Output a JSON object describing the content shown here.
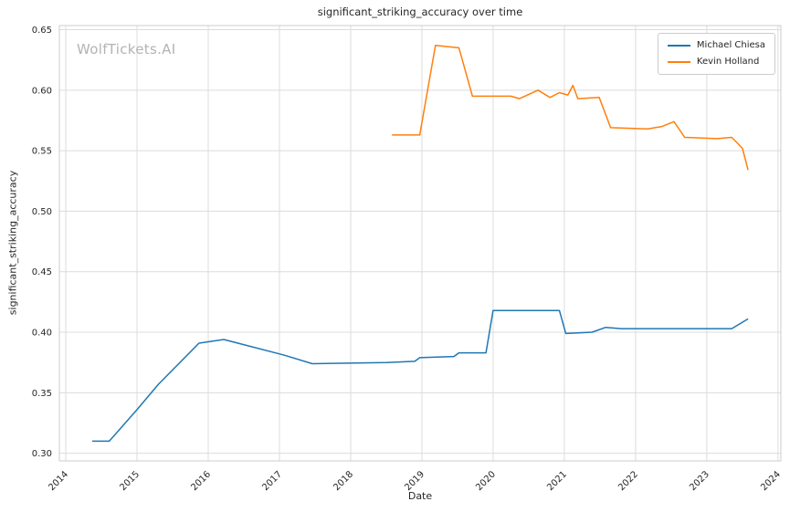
{
  "watermark": "WolfTickets.AI",
  "colors": {
    "grid": "#dcdcdc",
    "axes_border": "#cccccc",
    "text": "#262626",
    "watermark": "#b3b3b3"
  },
  "chart_data": {
    "type": "line",
    "title": "significant_striking_accuracy over time",
    "xlabel": "Date",
    "ylabel": "significant_striking_accuracy",
    "xlim": [
      2013.91,
      2024.04
    ],
    "ylim": [
      0.2937,
      0.6534
    ],
    "x_ticks": [
      2014,
      2015,
      2016,
      2017,
      2018,
      2019,
      2020,
      2021,
      2022,
      2023,
      2024
    ],
    "y_ticks": [
      0.3,
      0.35,
      0.4,
      0.45,
      0.5,
      0.55,
      0.6,
      0.65
    ],
    "grid": true,
    "legend_position": "upper right",
    "series": [
      {
        "name": "Michael Chiesa",
        "color": "#1f77b4",
        "points": [
          [
            2014.37,
            0.31
          ],
          [
            2014.61,
            0.31
          ],
          [
            2015.0,
            0.336
          ],
          [
            2015.3,
            0.357
          ],
          [
            2015.87,
            0.391
          ],
          [
            2016.22,
            0.394
          ],
          [
            2017.07,
            0.381
          ],
          [
            2017.46,
            0.374
          ],
          [
            2018.5,
            0.375
          ],
          [
            2018.9,
            0.376
          ],
          [
            2018.97,
            0.379
          ],
          [
            2019.45,
            0.38
          ],
          [
            2019.52,
            0.383
          ],
          [
            2019.9,
            0.383
          ],
          [
            2020.0,
            0.418
          ],
          [
            2020.93,
            0.418
          ],
          [
            2021.02,
            0.399
          ],
          [
            2021.39,
            0.4
          ],
          [
            2021.58,
            0.404
          ],
          [
            2021.8,
            0.403
          ],
          [
            2023.35,
            0.403
          ],
          [
            2023.58,
            0.411
          ]
        ]
      },
      {
        "name": "Kevin Holland",
        "color": "#ff7f0e",
        "points": [
          [
            2018.58,
            0.563
          ],
          [
            2018.97,
            0.563
          ],
          [
            2019.19,
            0.637
          ],
          [
            2019.52,
            0.635
          ],
          [
            2019.71,
            0.595
          ],
          [
            2020.25,
            0.595
          ],
          [
            2020.37,
            0.593
          ],
          [
            2020.63,
            0.6
          ],
          [
            2020.8,
            0.594
          ],
          [
            2020.93,
            0.598
          ],
          [
            2021.05,
            0.596
          ],
          [
            2021.12,
            0.604
          ],
          [
            2021.19,
            0.593
          ],
          [
            2021.49,
            0.594
          ],
          [
            2021.65,
            0.569
          ],
          [
            2022.17,
            0.568
          ],
          [
            2022.37,
            0.57
          ],
          [
            2022.54,
            0.574
          ],
          [
            2022.69,
            0.561
          ],
          [
            2023.15,
            0.56
          ],
          [
            2023.35,
            0.561
          ],
          [
            2023.5,
            0.552
          ],
          [
            2023.58,
            0.534
          ]
        ]
      }
    ]
  }
}
